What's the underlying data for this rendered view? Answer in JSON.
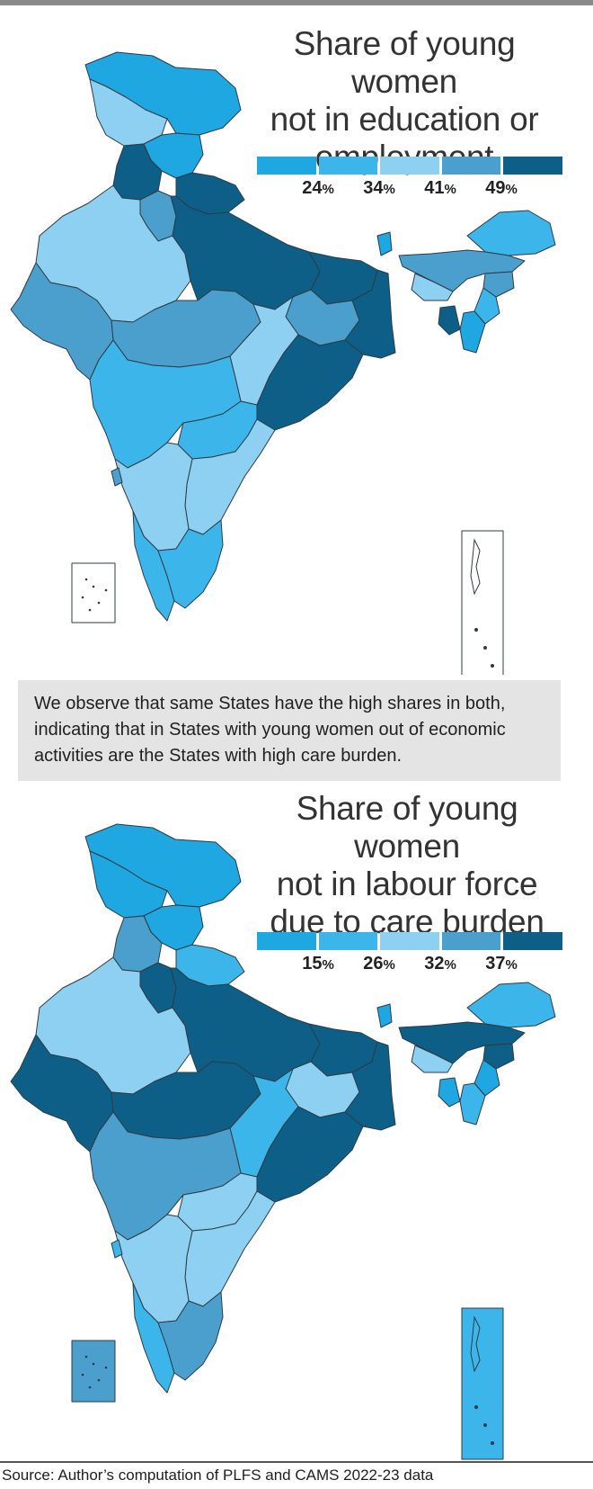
{
  "maps": [
    {
      "title_lines": [
        "Share of young women",
        "not in education or",
        "employment"
      ],
      "legend": {
        "colors": [
          "#1ea7e0",
          "#3cb6ea",
          "#8ed0f2",
          "#4a9fcc",
          "#0d5f87"
        ],
        "labels": [
          {
            "value": "24",
            "unit": "%"
          },
          {
            "value": "34",
            "unit": "%"
          },
          {
            "value": "41",
            "unit": "%"
          },
          {
            "value": "49",
            "unit": "%"
          }
        ]
      },
      "regions": {
        "ladakh-jk": "#1ea7e0",
        "jk": "#8ed0f2",
        "himachal": "#1ea7e0",
        "punjab": "#0d5f87",
        "haryana": "#4a9fcc",
        "uttarakhand": "#0d5f87",
        "rajasthan": "#8ed0f2",
        "up": "#0d5f87",
        "bihar": "#0d5f87",
        "gujarat": "#4a9fcc",
        "mp": "#4a9fcc",
        "jharkhand": "#4a9fcc",
        "wb": "#0d5f87",
        "chhattisgarh": "#8ed0f2",
        "odisha": "#0d5f87",
        "maharashtra": "#3cb6ea",
        "telangana": "#3cb6ea",
        "andhra": "#8ed0f2",
        "karnataka": "#8ed0f2",
        "goa": "#4a9fcc",
        "kerala": "#3cb6ea",
        "tamilnadu": "#3cb6ea",
        "sikkim": "#1ea7e0",
        "arunachal": "#3cb6ea",
        "assam": "#4a9fcc",
        "meghalaya": "#8ed0f2",
        "nagaland": "#4a9fcc",
        "manipur": "#3cb6ea",
        "mizoram": "#1ea7e0",
        "tripura": "#0d5f87",
        "lakshadweep": "#ffffff",
        "andaman": "#ffffff"
      }
    },
    {
      "title_lines": [
        "Share of young women",
        "not in labour force",
        "due to care burden"
      ],
      "legend": {
        "colors": [
          "#1ea7e0",
          "#3cb6ea",
          "#8ed0f2",
          "#4a9fcc",
          "#0d5f87"
        ],
        "labels": [
          {
            "value": "15",
            "unit": "%"
          },
          {
            "value": "26",
            "unit": "%"
          },
          {
            "value": "32",
            "unit": "%"
          },
          {
            "value": "37",
            "unit": "%"
          }
        ]
      },
      "regions": {
        "ladakh-jk": "#1ea7e0",
        "jk": "#1ea7e0",
        "himachal": "#1ea7e0",
        "punjab": "#4a9fcc",
        "haryana": "#0d5f87",
        "uttarakhand": "#3cb6ea",
        "rajasthan": "#8ed0f2",
        "up": "#0d5f87",
        "bihar": "#0d5f87",
        "gujarat": "#0d5f87",
        "mp": "#0d5f87",
        "jharkhand": "#8ed0f2",
        "wb": "#0d5f87",
        "chhattisgarh": "#3cb6ea",
        "odisha": "#0d5f87",
        "maharashtra": "#4a9fcc",
        "telangana": "#8ed0f2",
        "andhra": "#8ed0f2",
        "karnataka": "#8ed0f2",
        "goa": "#3cb6ea",
        "kerala": "#3cb6ea",
        "tamilnadu": "#4a9fcc",
        "sikkim": "#1ea7e0",
        "arunachal": "#3cb6ea",
        "assam": "#0d5f87",
        "meghalaya": "#8ed0f2",
        "nagaland": "#0d5f87",
        "manipur": "#1ea7e0",
        "mizoram": "#3cb6ea",
        "tripura": "#1ea7e0",
        "lakshadweep": "#4a9fcc",
        "andaman": "#3cb6ea"
      }
    }
  ],
  "note": "We observe that same States have the high shares in both, indicating that in States with young women out of economic activities are the States with high care burden.",
  "source": "Source: Author’s computation of PLFS and CAMS 2022-23 data"
}
